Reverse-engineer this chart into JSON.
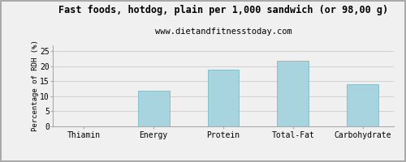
{
  "title": "Fast foods, hotdog, plain per 1,000 sandwich (or 98,00 g)",
  "subtitle": "www.dietandfitnesstoday.com",
  "categories": [
    "Thiamin",
    "Energy",
    "Protein",
    "Total-Fat",
    "Carbohydrate"
  ],
  "values": [
    0,
    12,
    19,
    22,
    14
  ],
  "bar_color": "#a8d4e0",
  "bar_edge_color": "#88bfcc",
  "ylabel": "Percentage of RDH (%)",
  "ylim": [
    0,
    27
  ],
  "yticks": [
    0,
    5,
    10,
    15,
    20,
    25
  ],
  "bg_color": "#f0f0f0",
  "grid_color": "#cccccc",
  "border_color": "#aaaaaa",
  "title_fontsize": 8.5,
  "subtitle_fontsize": 7.5,
  "label_fontsize": 6.5,
  "tick_fontsize": 7.0
}
